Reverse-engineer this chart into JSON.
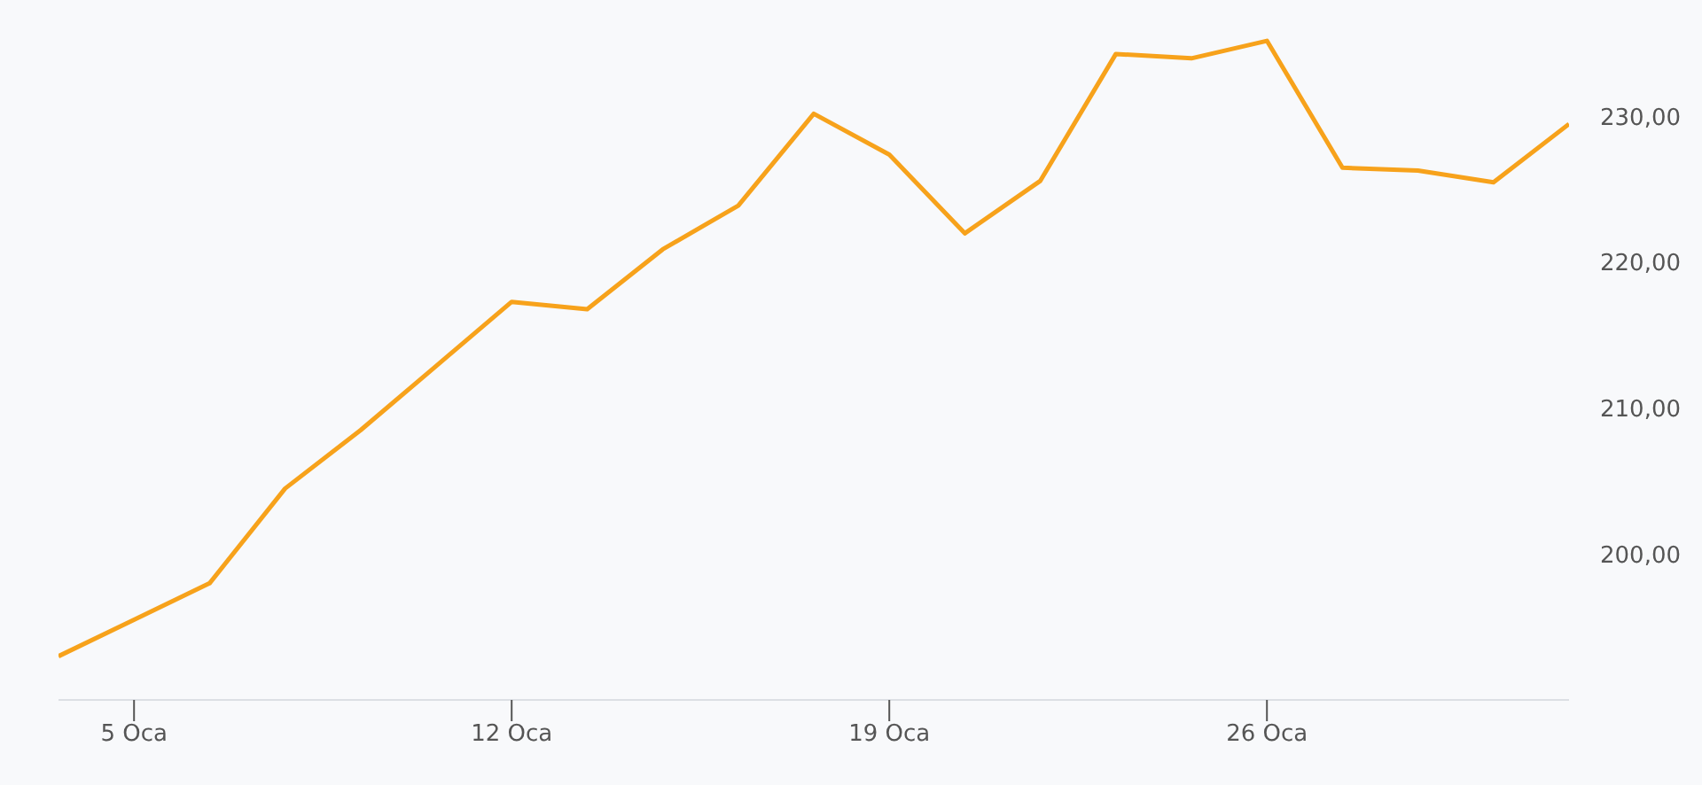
{
  "chart_data": {
    "type": "line",
    "categories": [
      null,
      "5 Oca",
      null,
      null,
      null,
      null,
      "12 Oca",
      null,
      null,
      null,
      null,
      "19 Oca",
      null,
      null,
      null,
      null,
      "26 Oca",
      null,
      null,
      null,
      null
    ],
    "series": [
      {
        "color": "#f7a21b",
        "values": [
          193.0,
          195.5,
          198.0,
          204.5,
          208.5,
          212.9,
          217.3,
          216.8,
          220.9,
          223.9,
          230.2,
          227.4,
          222.0,
          225.6,
          234.3,
          234.0,
          235.2,
          226.5,
          226.3,
          225.5,
          229.5
        ]
      }
    ],
    "ylim": [
      190,
      238
    ],
    "yticks": [
      {
        "value": 200,
        "label": "200,00"
      },
      {
        "value": 210,
        "label": "210,00"
      },
      {
        "value": 220,
        "label": "220,00"
      },
      {
        "value": 230,
        "label": "230,00"
      }
    ],
    "grid": false,
    "legend": false,
    "marker": "none",
    "line_style": "solid"
  }
}
